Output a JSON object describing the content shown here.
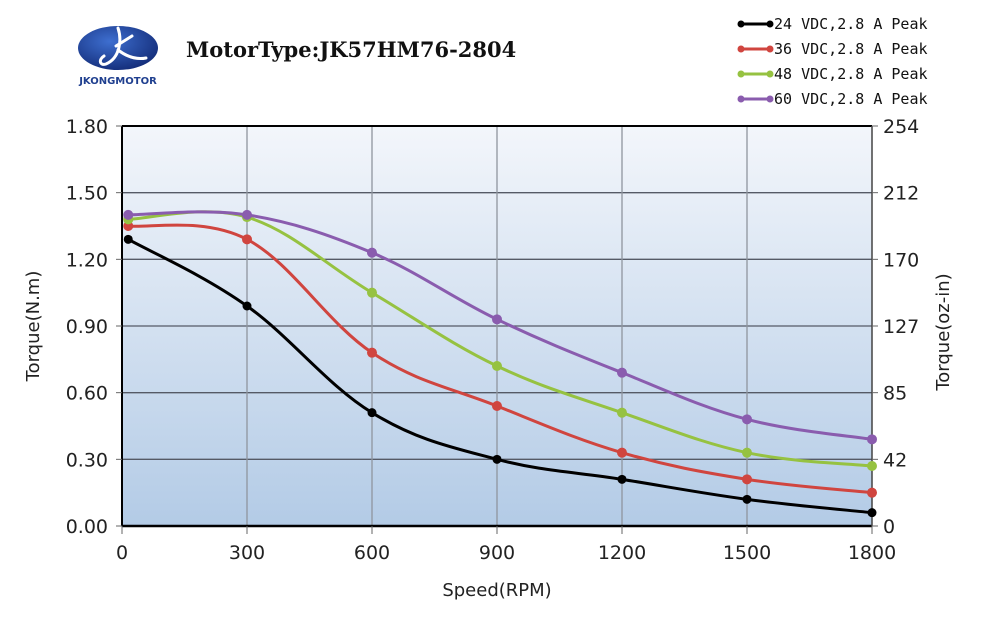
{
  "header": {
    "brand": "JKONGMOTOR",
    "title": "MotorType:JK57HM76-2804"
  },
  "colors": {
    "series": [
      "#000000",
      "#d0453f",
      "#96c241",
      "#8a5cae"
    ],
    "plot_top": "#f3f6fb",
    "plot_bottom": "#b3cbe6",
    "logo": "#1d3f92"
  },
  "chart_data": {
    "type": "line",
    "title": "MotorType:JK57HM76-2804",
    "xlabel": "Speed(RPM)",
    "ylabel": "Torque(N.m)",
    "y2label": "Torque(oz-in)",
    "xlim": [
      0,
      1800
    ],
    "ylim": [
      0,
      1.8
    ],
    "grid": true,
    "legend_position": "top-right",
    "x_ticks": [
      "0",
      "300",
      "600",
      "900",
      "1200",
      "1500",
      "1800"
    ],
    "y_ticks": [
      "0.00",
      "0.30",
      "0.60",
      "0.90",
      "1.20",
      "1.50",
      "1.80"
    ],
    "y2_ticks": [
      "0",
      "42",
      "85",
      "127",
      "170",
      "212",
      "254"
    ],
    "x": [
      15,
      300,
      600,
      900,
      1200,
      1500,
      1800
    ],
    "series": [
      {
        "name": "24 VDC,2.8 A Peak",
        "values": [
          1.29,
          0.99,
          0.51,
          0.3,
          0.21,
          0.12,
          0.06
        ]
      },
      {
        "name": "36 VDC,2.8 A Peak",
        "values": [
          1.35,
          1.29,
          0.78,
          0.54,
          0.33,
          0.21,
          0.15
        ]
      },
      {
        "name": "48 VDC,2.8 A Peak",
        "values": [
          1.38,
          1.39,
          1.05,
          0.72,
          0.51,
          0.33,
          0.27
        ]
      },
      {
        "name": "60 VDC,2.8 A Peak",
        "values": [
          1.4,
          1.4,
          1.23,
          0.93,
          0.69,
          0.48,
          0.39
        ]
      }
    ]
  }
}
